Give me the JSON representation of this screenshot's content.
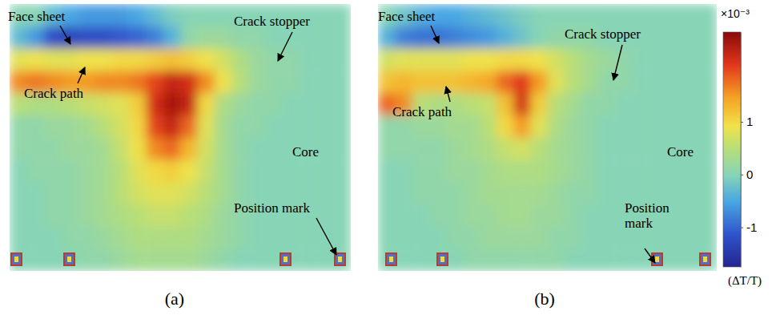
{
  "chart_data": {
    "type": "heatmap",
    "panels": [
      {
        "title": "(a)",
        "annotations": [
          "Face sheet",
          "Crack stopper",
          "Crack path",
          "Core",
          "Position mark"
        ],
        "cells": [
          [
            0,
            0,
            -0.3,
            -0.5,
            -0.6,
            -0.6,
            -0.6,
            -0.5,
            -0.3,
            -0.1,
            0,
            0,
            0,
            0,
            0,
            0,
            0,
            0,
            0,
            0
          ],
          [
            -0.3,
            -0.6,
            -1.2,
            -1.3,
            -1.2,
            -1.2,
            -1.1,
            -1.0,
            -0.8,
            -0.4,
            0.1,
            0.2,
            0.2,
            0.1,
            0.1,
            0,
            0,
            0,
            0,
            0
          ],
          [
            0.8,
            0.9,
            0.8,
            0.8,
            0.9,
            0.9,
            1.0,
            1.0,
            1.1,
            1.2,
            1.1,
            0.9,
            0.7,
            0.4,
            0.2,
            0.1,
            0.1,
            0,
            0,
            0
          ],
          [
            1.6,
            1.7,
            1.6,
            1.5,
            1.5,
            1.6,
            1.6,
            1.7,
            2.0,
            2.3,
            2.2,
            1.6,
            0.9,
            0.5,
            0.2,
            0.1,
            0.1,
            0,
            0,
            0
          ],
          [
            0.5,
            0.4,
            0.4,
            0.5,
            0.6,
            0.7,
            0.8,
            1.1,
            2.2,
            2.5,
            2.3,
            1.0,
            0.4,
            0.2,
            0.1,
            0.1,
            0,
            0,
            0,
            0
          ],
          [
            0.1,
            0.1,
            0.2,
            0.2,
            0.3,
            0.5,
            0.7,
            1.0,
            2.0,
            2.3,
            1.8,
            0.8,
            0.3,
            0.1,
            0.1,
            0,
            0,
            0,
            0,
            0
          ],
          [
            0.1,
            0.1,
            0.1,
            0.2,
            0.2,
            0.3,
            0.6,
            0.9,
            1.6,
            1.8,
            1.3,
            0.7,
            0.3,
            0.1,
            0,
            0,
            0,
            0,
            0,
            0
          ],
          [
            0,
            0.1,
            0.1,
            0.1,
            0.2,
            0.3,
            0.5,
            0.8,
            1.0,
            1.1,
            0.9,
            0.6,
            0.3,
            0.1,
            0,
            0,
            0,
            0,
            0,
            0
          ],
          [
            0,
            0,
            0.1,
            0.1,
            0.2,
            0.3,
            0.5,
            0.7,
            0.8,
            0.8,
            0.7,
            0.5,
            0.3,
            0.1,
            0,
            0,
            0,
            0,
            0,
            0
          ],
          [
            0,
            0,
            0.1,
            0.1,
            0.2,
            0.3,
            0.4,
            0.5,
            0.6,
            0.6,
            0.5,
            0.4,
            0.2,
            0.1,
            0,
            0,
            0,
            0,
            0,
            0
          ],
          [
            0,
            0,
            0,
            0.1,
            0.1,
            0.2,
            0.3,
            0.4,
            0.4,
            0.4,
            0.4,
            0.3,
            0.2,
            0.1,
            0,
            0,
            0,
            0,
            0,
            0
          ],
          [
            0,
            0,
            0,
            0,
            0.1,
            0.1,
            0.2,
            0.3,
            0.3,
            0.3,
            0.3,
            0.2,
            0.1,
            0,
            0,
            0,
            0,
            0,
            0,
            0
          ]
        ]
      },
      {
        "title": "(b)",
        "annotations": [
          "Face sheet",
          "Crack stopper",
          "Crack path",
          "Core",
          "Position mark"
        ],
        "cells": [
          [
            0,
            -0.2,
            -0.4,
            -0.5,
            -0.5,
            -0.4,
            -0.3,
            -0.2,
            -0.1,
            0,
            0,
            0,
            0,
            0,
            0,
            0,
            0,
            0,
            0,
            0
          ],
          [
            -0.4,
            -0.8,
            -0.9,
            -0.9,
            -0.8,
            -0.7,
            -0.6,
            -0.4,
            -0.2,
            0,
            0.1,
            0.1,
            0.1,
            0,
            0,
            0,
            0,
            0,
            0,
            0
          ],
          [
            0.7,
            0.8,
            0.8,
            0.8,
            0.8,
            0.9,
            0.9,
            1.0,
            1.0,
            0.9,
            0.7,
            0.5,
            0.3,
            0.2,
            0.1,
            0,
            0,
            0,
            0,
            0
          ],
          [
            1.2,
            1.3,
            1.2,
            1.2,
            1.2,
            1.3,
            1.4,
            1.8,
            2.1,
            1.5,
            0.8,
            0.5,
            0.3,
            0.1,
            0.1,
            0,
            0,
            0,
            0,
            0
          ],
          [
            1.8,
            1.6,
            0.5,
            0.4,
            0.4,
            0.5,
            0.6,
            1.2,
            2.2,
            1.1,
            0.5,
            0.3,
            0.1,
            0.1,
            0,
            0,
            0,
            0,
            0,
            0
          ],
          [
            0.1,
            0.1,
            0.2,
            0.2,
            0.3,
            0.3,
            0.5,
            1.0,
            1.5,
            0.8,
            0.4,
            0.2,
            0.1,
            0,
            0,
            0,
            0,
            0,
            0,
            0
          ],
          [
            0.1,
            0.1,
            0.1,
            0.1,
            0.2,
            0.3,
            0.4,
            0.6,
            0.7,
            0.5,
            0.3,
            0.2,
            0.1,
            0,
            0,
            0,
            0,
            0,
            0,
            0
          ],
          [
            0,
            0,
            0.1,
            0.1,
            0.2,
            0.2,
            0.3,
            0.4,
            0.4,
            0.4,
            0.3,
            0.2,
            0.1,
            0,
            0,
            0,
            0,
            0,
            0,
            0
          ],
          [
            0,
            0,
            0.1,
            0.1,
            0.1,
            0.2,
            0.3,
            0.3,
            0.3,
            0.3,
            0.2,
            0.1,
            0.1,
            0,
            0,
            0,
            0,
            0,
            0,
            0
          ],
          [
            0,
            0,
            0,
            0.1,
            0.1,
            0.2,
            0.2,
            0.3,
            0.3,
            0.2,
            0.2,
            0.1,
            0,
            0,
            0,
            0,
            0,
            0,
            0,
            0
          ],
          [
            0,
            0,
            0,
            0,
            0.1,
            0.1,
            0.2,
            0.2,
            0.2,
            0.2,
            0.1,
            0.1,
            0,
            0,
            0,
            0,
            0,
            0,
            0,
            0
          ],
          [
            0,
            0,
            0,
            0,
            0,
            0.1,
            0.1,
            0.1,
            0.1,
            0.1,
            0.1,
            0,
            0,
            0,
            0,
            0,
            0,
            0,
            0,
            0
          ]
        ]
      }
    ],
    "colorbar": {
      "range": [
        -1.75,
        2.7
      ],
      "ticks": [
        1,
        0,
        -1
      ],
      "multiplier": "×10⁻³",
      "label": "(ΔT/T)"
    }
  }
}
